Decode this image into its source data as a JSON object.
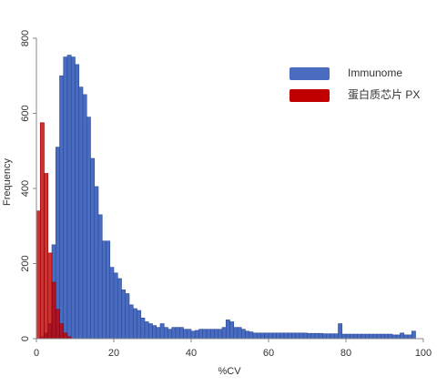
{
  "chart_data": {
    "type": "histogram",
    "xlabel": "%CV",
    "ylabel": "Frequency",
    "xlim": [
      0,
      100
    ],
    "xticks": [
      0,
      20,
      40,
      60,
      80,
      100
    ],
    "ylim": [
      0,
      800
    ],
    "yticks": [
      0,
      200,
      400,
      600,
      800
    ],
    "legend": "upper right",
    "series": [
      {
        "name": "Immunome",
        "color": "#4a6cc0",
        "edge": "#2b4a9a",
        "bins": [
          1,
          2,
          3,
          4,
          5,
          6,
          7,
          8,
          9,
          10,
          11,
          12,
          13,
          14,
          15,
          16,
          17,
          18,
          19,
          20,
          21,
          22,
          23,
          24,
          25,
          26,
          27,
          28,
          29,
          30,
          31,
          32,
          33,
          34,
          35,
          36,
          37,
          38,
          39,
          40,
          41,
          42,
          43,
          44,
          45,
          46,
          47,
          48,
          49,
          50,
          51,
          52,
          53,
          54,
          55,
          56,
          57,
          58,
          59,
          60,
          61,
          62,
          63,
          64,
          65,
          66,
          67,
          68,
          69,
          70,
          71,
          72,
          73,
          74,
          75,
          76,
          77,
          78,
          79,
          80,
          81,
          82,
          83,
          84,
          85,
          86,
          87,
          88,
          89,
          90,
          91,
          92,
          93,
          94,
          95,
          96,
          97,
          98
        ],
        "values": [
          5,
          15,
          40,
          250,
          510,
          700,
          750,
          755,
          750,
          730,
          670,
          650,
          590,
          480,
          405,
          330,
          260,
          260,
          190,
          175,
          160,
          130,
          120,
          90,
          80,
          75,
          55,
          45,
          40,
          35,
          30,
          40,
          30,
          25,
          30,
          30,
          30,
          25,
          25,
          20,
          22,
          25,
          25,
          25,
          25,
          25,
          25,
          30,
          50,
          45,
          30,
          30,
          25,
          20,
          18,
          15,
          15,
          15,
          15,
          15,
          15,
          15,
          15,
          15,
          15,
          15,
          15,
          15,
          15,
          14,
          14,
          14,
          14,
          13,
          13,
          13,
          13,
          40,
          12,
          12,
          12,
          12,
          12,
          12,
          12,
          12,
          12,
          12,
          12,
          12,
          12,
          10,
          10,
          15,
          10,
          10,
          20
        ]
      },
      {
        "name": "蛋白质芯片 PX",
        "color": "#c00000",
        "edge": "#900000",
        "bins": [
          0,
          1,
          2,
          3,
          4,
          5,
          6,
          7,
          8,
          9
        ],
        "values": [
          340,
          575,
          440,
          228,
          150,
          78,
          40,
          15,
          5
        ]
      }
    ]
  }
}
